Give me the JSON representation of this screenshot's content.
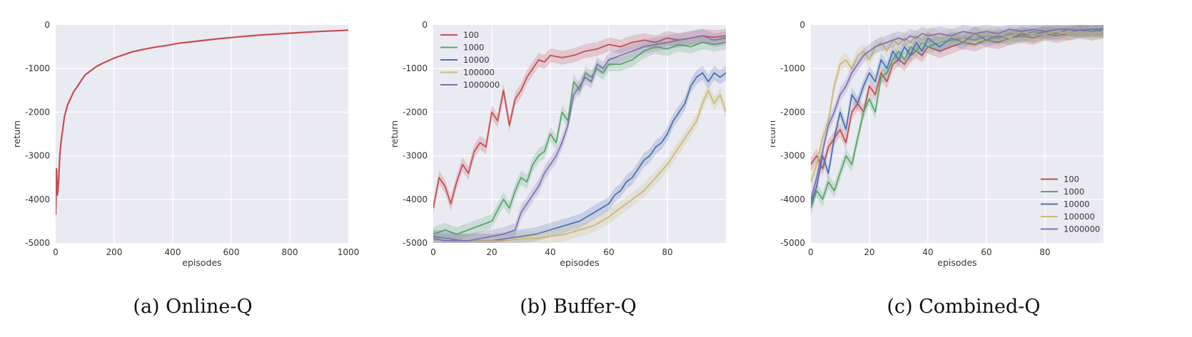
{
  "colors": {
    "100": "#c44e52",
    "1000": "#55a868",
    "10000": "#4c72b0",
    "100000": "#ccb974",
    "1000000": "#8172b2",
    "plot_bg": "#eaeaf2",
    "grid": "#ffffff"
  },
  "chart_data": [
    {
      "type": "line",
      "caption": "(a) Online-Q",
      "xlabel": "episodes",
      "ylabel": "return",
      "xlim": [
        0,
        1000
      ],
      "ylim": [
        -5000,
        0
      ],
      "x_ticks": [
        0,
        200,
        400,
        600,
        800,
        1000
      ],
      "y_ticks": [
        0,
        -1000,
        -2000,
        -3000,
        -4000,
        -5000
      ],
      "grid": true,
      "legend": null,
      "series": [
        {
          "color_key": "100",
          "x": [
            0,
            3,
            6,
            10,
            14,
            18,
            25,
            30,
            40,
            50,
            60,
            75,
            90,
            100,
            120,
            140,
            160,
            180,
            200,
            230,
            260,
            300,
            340,
            380,
            420,
            460,
            500,
            550,
            600,
            650,
            700,
            750,
            800,
            850,
            900,
            950,
            1000
          ],
          "y": [
            -4350,
            -3300,
            -3900,
            -3600,
            -3000,
            -2700,
            -2350,
            -2100,
            -1850,
            -1700,
            -1550,
            -1400,
            -1250,
            -1150,
            -1050,
            -950,
            -880,
            -820,
            -760,
            -690,
            -620,
            -560,
            -510,
            -470,
            -420,
            -390,
            -360,
            -320,
            -290,
            -260,
            -230,
            -210,
            -190,
            -170,
            -150,
            -135,
            -120
          ]
        }
      ]
    },
    {
      "type": "line",
      "caption": "(b) Buffer-Q",
      "xlabel": "episodes",
      "ylabel": "return",
      "xlim": [
        0,
        100
      ],
      "ylim": [
        -5000,
        0
      ],
      "x_ticks": [
        0,
        20,
        40,
        60,
        80
      ],
      "y_ticks": [
        0,
        -1000,
        -2000,
        -3000,
        -4000,
        -5000
      ],
      "grid": true,
      "legend": "top-left",
      "series": [
        {
          "name": "100",
          "color_key": "100",
          "x": [
            0,
            2,
            4,
            6,
            8,
            10,
            12,
            14,
            16,
            18,
            20,
            22,
            24,
            26,
            28,
            30,
            32,
            34,
            36,
            38,
            40,
            44,
            48,
            52,
            56,
            60,
            64,
            68,
            72,
            76,
            80,
            84,
            88,
            92,
            96,
            100
          ],
          "y": [
            -4200,
            -3500,
            -3700,
            -4100,
            -3600,
            -3200,
            -3400,
            -2900,
            -2700,
            -2800,
            -2000,
            -2200,
            -1500,
            -2300,
            -1700,
            -1500,
            -1200,
            -1000,
            -800,
            -850,
            -700,
            -750,
            -700,
            -600,
            -550,
            -450,
            -500,
            -400,
            -350,
            -400,
            -300,
            -350,
            -300,
            -250,
            -280,
            -250
          ]
        },
        {
          "name": "1000",
          "color_key": "1000",
          "x": [
            0,
            4,
            8,
            12,
            16,
            20,
            24,
            26,
            28,
            30,
            32,
            34,
            36,
            38,
            40,
            42,
            44,
            46,
            48,
            50,
            52,
            54,
            56,
            58,
            60,
            64,
            68,
            72,
            76,
            80,
            84,
            88,
            92,
            96,
            100
          ],
          "y": [
            -4800,
            -4700,
            -4800,
            -4700,
            -4600,
            -4500,
            -4000,
            -4200,
            -3800,
            -3500,
            -3600,
            -3200,
            -3000,
            -2900,
            -2500,
            -2700,
            -2000,
            -2200,
            -1300,
            -1500,
            -1100,
            -1200,
            -1000,
            -1100,
            -900,
            -900,
            -800,
            -600,
            -500,
            -550,
            -450,
            -500,
            -400,
            -450,
            -400
          ]
        },
        {
          "name": "10000",
          "color_key": "10000",
          "x": [
            0,
            5,
            10,
            15,
            20,
            25,
            30,
            35,
            40,
            45,
            50,
            55,
            60,
            62,
            64,
            66,
            68,
            70,
            72,
            74,
            76,
            78,
            80,
            82,
            84,
            86,
            88,
            90,
            92,
            94,
            96,
            98,
            100
          ],
          "y": [
            -4850,
            -4900,
            -4950,
            -4950,
            -4950,
            -4900,
            -4850,
            -4800,
            -4700,
            -4600,
            -4500,
            -4300,
            -4100,
            -3900,
            -3800,
            -3600,
            -3500,
            -3300,
            -3100,
            -3000,
            -2800,
            -2700,
            -2500,
            -2200,
            -2000,
            -1800,
            -1400,
            -1200,
            -1100,
            -1300,
            -1100,
            -1200,
            -1100
          ]
        },
        {
          "name": "100000",
          "color_key": "100000",
          "x": [
            0,
            5,
            10,
            15,
            20,
            25,
            30,
            35,
            40,
            45,
            50,
            55,
            60,
            64,
            68,
            72,
            76,
            80,
            84,
            88,
            90,
            92,
            94,
            96,
            98,
            100
          ],
          "y": [
            -4900,
            -4950,
            -4950,
            -4950,
            -4950,
            -4950,
            -4900,
            -4900,
            -4850,
            -4800,
            -4700,
            -4600,
            -4400,
            -4200,
            -4000,
            -3800,
            -3500,
            -3200,
            -2800,
            -2400,
            -2200,
            -1800,
            -1500,
            -1800,
            -1600,
            -2000
          ]
        },
        {
          "name": "1000000",
          "color_key": "1000000",
          "x": [
            0,
            4,
            8,
            12,
            16,
            20,
            24,
            28,
            30,
            32,
            34,
            36,
            38,
            40,
            42,
            44,
            46,
            48,
            50,
            52,
            54,
            56,
            58,
            60,
            64,
            68,
            72,
            76,
            80,
            84,
            88,
            92,
            96,
            100
          ],
          "y": [
            -4900,
            -4950,
            -4950,
            -4950,
            -4900,
            -4850,
            -4800,
            -4700,
            -4300,
            -4100,
            -3900,
            -3700,
            -3400,
            -3200,
            -3000,
            -2700,
            -2300,
            -1600,
            -1400,
            -1200,
            -1300,
            -900,
            -1000,
            -800,
            -700,
            -600,
            -500,
            -450,
            -400,
            -350,
            -300,
            -250,
            -350,
            -300
          ]
        }
      ]
    },
    {
      "type": "line",
      "caption": "(c) Combined-Q",
      "xlabel": "episodes",
      "ylabel": "return",
      "xlim": [
        0,
        100
      ],
      "ylim": [
        -5000,
        0
      ],
      "x_ticks": [
        0,
        20,
        40,
        60,
        80
      ],
      "y_ticks": [
        0,
        -1000,
        -2000,
        -3000,
        -4000,
        -5000
      ],
      "grid": true,
      "legend": "bottom-right",
      "series": [
        {
          "name": "100",
          "color_key": "100",
          "x": [
            0,
            2,
            4,
            6,
            8,
            10,
            12,
            14,
            16,
            18,
            20,
            22,
            24,
            26,
            28,
            30,
            32,
            34,
            36,
            38,
            40,
            44,
            48,
            52,
            56,
            60,
            64,
            68,
            72,
            76,
            80,
            84,
            88,
            92,
            96,
            100
          ],
          "y": [
            -3200,
            -3000,
            -3300,
            -2800,
            -2600,
            -2400,
            -2700,
            -2000,
            -1800,
            -2000,
            -1400,
            -1600,
            -1100,
            -1300,
            -900,
            -800,
            -900,
            -700,
            -600,
            -700,
            -500,
            -600,
            -500,
            -400,
            -450,
            -350,
            -400,
            -300,
            -250,
            -300,
            -200,
            -250,
            -200,
            -150,
            -200,
            -150
          ]
        },
        {
          "name": "1000",
          "color_key": "1000",
          "x": [
            0,
            2,
            4,
            6,
            8,
            10,
            12,
            14,
            16,
            18,
            20,
            22,
            24,
            26,
            28,
            30,
            32,
            34,
            36,
            38,
            40,
            44,
            48,
            52,
            56,
            60,
            64,
            68,
            72,
            76,
            80,
            84,
            88,
            92,
            96,
            100
          ],
          "y": [
            -4200,
            -3800,
            -4000,
            -3600,
            -3800,
            -3400,
            -3000,
            -3200,
            -2600,
            -2000,
            -1700,
            -2000,
            -1200,
            -1100,
            -800,
            -600,
            -800,
            -500,
            -600,
            -400,
            -500,
            -400,
            -350,
            -300,
            -350,
            -250,
            -300,
            -200,
            -250,
            -150,
            -200,
            -150,
            -200,
            -100,
            -150,
            -100
          ]
        },
        {
          "name": "10000",
          "color_key": "10000",
          "x": [
            0,
            2,
            4,
            6,
            8,
            10,
            12,
            14,
            16,
            18,
            20,
            22,
            24,
            26,
            28,
            30,
            32,
            34,
            36,
            38,
            40,
            44,
            48,
            52,
            56,
            60,
            64,
            68,
            72,
            76,
            80,
            84,
            88,
            92,
            96,
            100
          ],
          "y": [
            -4100,
            -3700,
            -3000,
            -3400,
            -2600,
            -2000,
            -2400,
            -1600,
            -1800,
            -1400,
            -1100,
            -1300,
            -800,
            -1000,
            -600,
            -800,
            -500,
            -700,
            -400,
            -600,
            -300,
            -500,
            -300,
            -400,
            -200,
            -350,
            -250,
            -300,
            -200,
            -250,
            -150,
            -200,
            -100,
            -150,
            -100,
            -150
          ]
        },
        {
          "name": "100000",
          "color_key": "100000",
          "x": [
            0,
            2,
            4,
            6,
            8,
            10,
            12,
            14,
            16,
            18,
            20,
            22,
            24,
            26,
            28,
            30,
            32,
            34,
            36,
            38,
            40,
            44,
            48,
            52,
            56,
            60,
            64,
            68,
            72,
            76,
            80,
            84,
            88,
            92,
            96,
            100
          ],
          "y": [
            -3600,
            -3200,
            -2600,
            -2200,
            -1400,
            -900,
            -800,
            -1000,
            -700,
            -600,
            -800,
            -500,
            -400,
            -600,
            -350,
            -450,
            -300,
            -400,
            -250,
            -350,
            -200,
            -300,
            -250,
            -300,
            -200,
            -250,
            -200,
            -300,
            -150,
            -250,
            -200,
            -150,
            -200,
            -150,
            -200,
            -150
          ]
        },
        {
          "name": "1000000",
          "color_key": "1000000",
          "x": [
            0,
            2,
            4,
            6,
            8,
            10,
            12,
            14,
            16,
            18,
            20,
            22,
            24,
            26,
            28,
            30,
            32,
            34,
            36,
            38,
            40,
            44,
            48,
            52,
            56,
            60,
            64,
            68,
            72,
            76,
            80,
            84,
            88,
            92,
            96,
            100
          ],
          "y": [
            -4000,
            -3500,
            -2900,
            -2300,
            -2000,
            -1600,
            -1400,
            -1100,
            -900,
            -700,
            -600,
            -500,
            -450,
            -400,
            -350,
            -300,
            -350,
            -250,
            -300,
            -200,
            -250,
            -200,
            -250,
            -150,
            -200,
            -150,
            -200,
            -100,
            -150,
            -100,
            -150,
            -100,
            -100,
            -120,
            -100,
            -90
          ]
        }
      ]
    }
  ]
}
